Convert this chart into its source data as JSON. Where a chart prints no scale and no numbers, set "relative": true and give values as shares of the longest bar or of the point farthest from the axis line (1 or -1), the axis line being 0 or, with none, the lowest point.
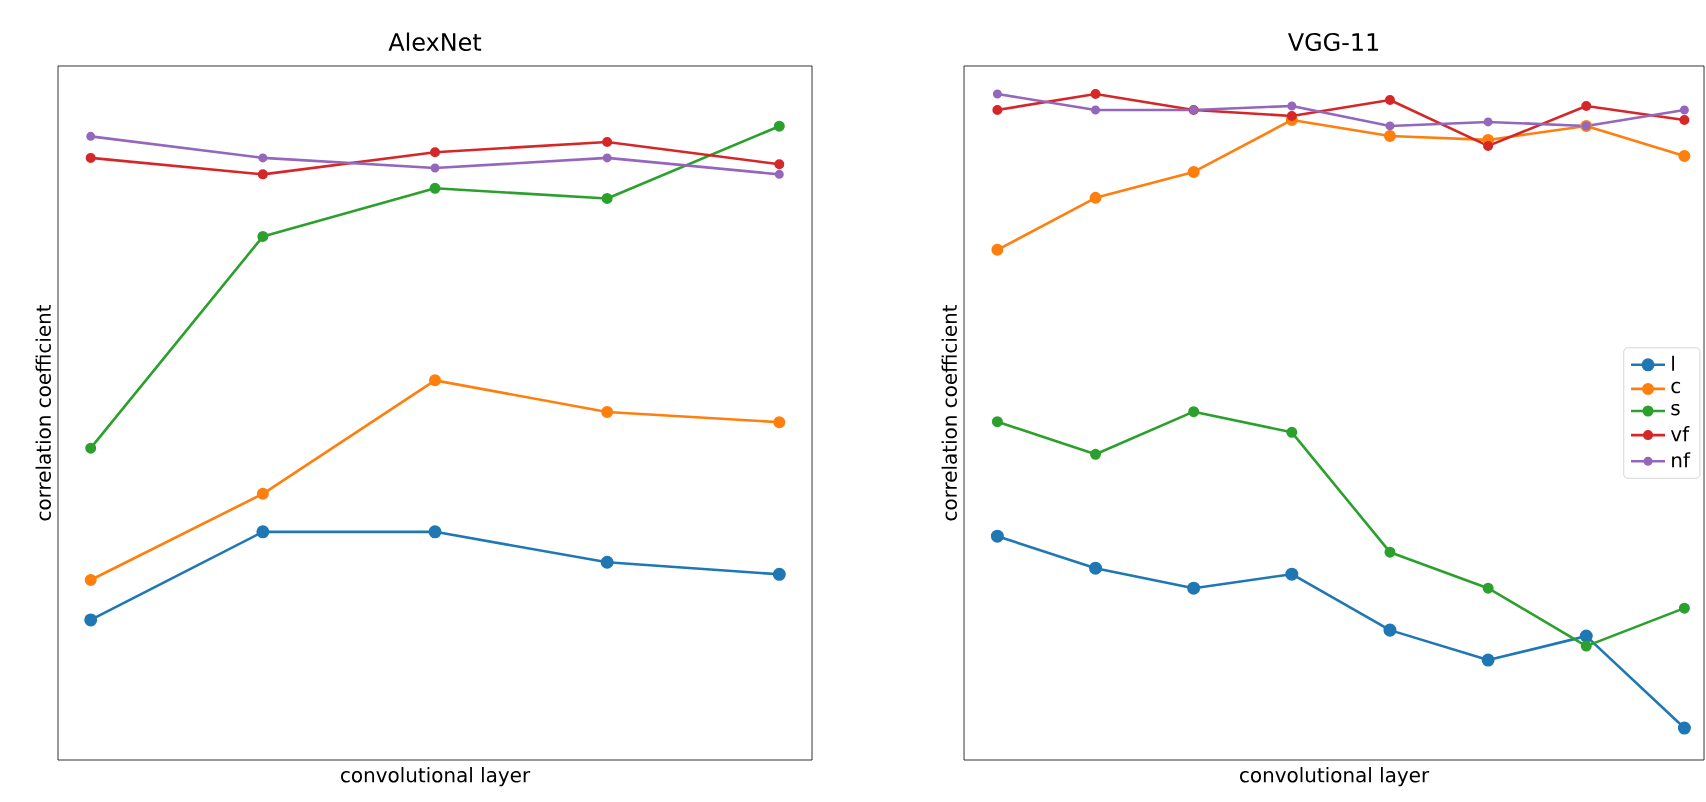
{
  "chart_data": [
    {
      "type": "line",
      "title": "AlexNet",
      "xlabel": "convolutional layer",
      "ylabel": "correlation coefficient",
      "relative": true,
      "marker": "circle",
      "categories": [
        null,
        null,
        null,
        null,
        null
      ],
      "series": [
        {
          "color": "#1f77b4",
          "values": [
            0.221,
            0.36,
            0.36,
            0.312,
            0.293
          ]
        },
        {
          "color": "#ff7f0e",
          "values": [
            0.284,
            0.42,
            0.599,
            0.549,
            0.533
          ]
        },
        {
          "color": "#2ca02c",
          "values": [
            0.492,
            0.826,
            0.902,
            0.886,
            1.0
          ]
        },
        {
          "color": "#d62728",
          "values": [
            0.95,
            0.924,
            0.959,
            0.975,
            0.94
          ]
        },
        {
          "color": "#9467bd",
          "values": [
            0.984,
            0.95,
            0.934,
            0.95,
            0.924
          ]
        }
      ]
    },
    {
      "type": "line",
      "title": "VGG-11",
      "xlabel": "convolutional layer",
      "ylabel": "correlation coefficient",
      "relative": true,
      "marker": "circle",
      "legend": "center right",
      "categories": [
        null,
        null,
        null,
        null,
        null,
        null,
        null,
        null
      ],
      "series": [
        {
          "name": "l",
          "color": "#1f77b4",
          "values": [
            0.336,
            0.288,
            0.258,
            0.279,
            0.195,
            0.15,
            0.186,
            0.048
          ]
        },
        {
          "name": "c",
          "color": "#ff7f0e",
          "values": [
            0.766,
            0.844,
            0.883,
            0.961,
            0.937,
            0.931,
            0.952,
            0.907
          ]
        },
        {
          "name": "s",
          "color": "#2ca02c",
          "values": [
            0.508,
            0.459,
            0.523,
            0.492,
            0.312,
            0.258,
            0.171,
            0.228
          ]
        },
        {
          "name": "vf",
          "color": "#d62728",
          "values": [
            0.976,
            1.0,
            0.976,
            0.967,
            0.991,
            0.922,
            0.982,
            0.961
          ]
        },
        {
          "name": "nf",
          "color": "#9467bd",
          "values": [
            1.0,
            0.976,
            0.976,
            0.982,
            0.952,
            0.958,
            0.952,
            0.976
          ]
        }
      ]
    }
  ]
}
